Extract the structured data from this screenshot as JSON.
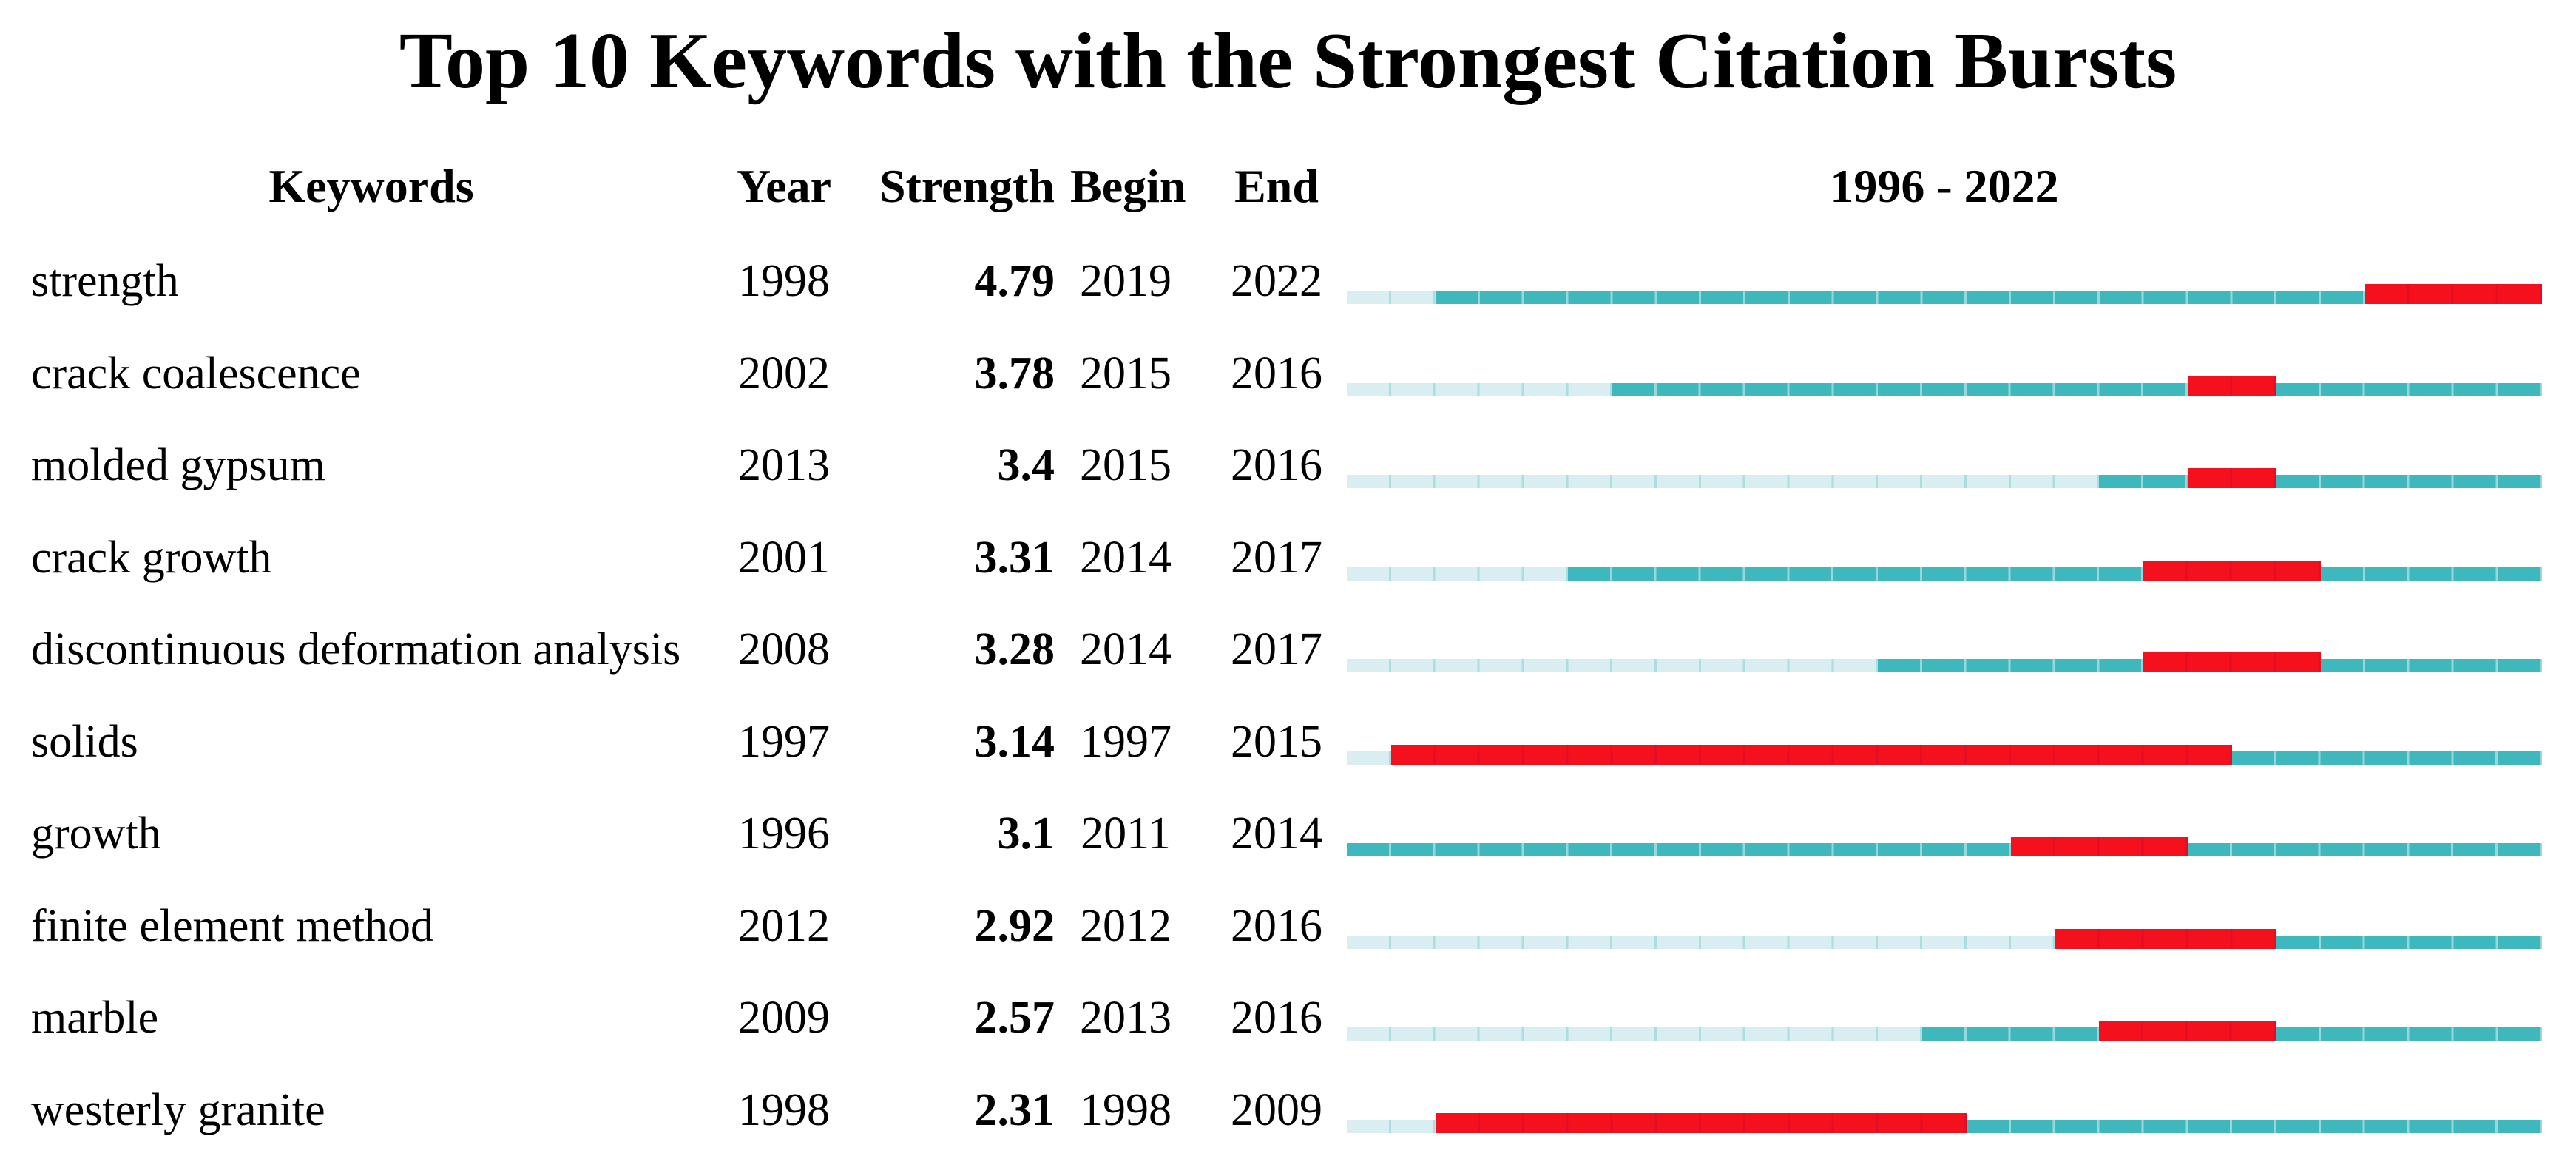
{
  "chart_data": {
    "type": "table",
    "title": "Top 10 Keywords with the Strongest Citation Bursts",
    "columns": [
      "Keywords",
      "Year",
      "Strength",
      "Begin",
      "End"
    ],
    "timeline": {
      "label": "1996 - 2022",
      "start_year": 1996,
      "end_year": 2022
    },
    "colors": {
      "burst_red": "#F5101D",
      "active_teal": "#3EB7BD",
      "inactive_pale": "#D9EEF0",
      "text": "#000000",
      "background": "#FFFFFF"
    },
    "rows": [
      {
        "keyword": "strength",
        "year": 1998,
        "strength": "4.79",
        "begin": 2019,
        "end": 2022
      },
      {
        "keyword": "crack coalescence",
        "year": 2002,
        "strength": "3.78",
        "begin": 2015,
        "end": 2016
      },
      {
        "keyword": "molded gypsum",
        "year": 2013,
        "strength": "3.4",
        "begin": 2015,
        "end": 2016
      },
      {
        "keyword": "crack growth",
        "year": 2001,
        "strength": "3.31",
        "begin": 2014,
        "end": 2017
      },
      {
        "keyword": "discontinuous deformation analysis",
        "year": 2008,
        "strength": "3.28",
        "begin": 2014,
        "end": 2017
      },
      {
        "keyword": "solids",
        "year": 1997,
        "strength": "3.14",
        "begin": 1997,
        "end": 2015
      },
      {
        "keyword": "growth",
        "year": 1996,
        "strength": "3.1",
        "begin": 2011,
        "end": 2014
      },
      {
        "keyword": "finite element method",
        "year": 2012,
        "strength": "2.92",
        "begin": 2012,
        "end": 2016
      },
      {
        "keyword": "marble",
        "year": 2009,
        "strength": "2.57",
        "begin": 2013,
        "end": 2016
      },
      {
        "keyword": "westerly granite",
        "year": 1998,
        "strength": "2.31",
        "begin": 1998,
        "end": 2009
      }
    ]
  }
}
